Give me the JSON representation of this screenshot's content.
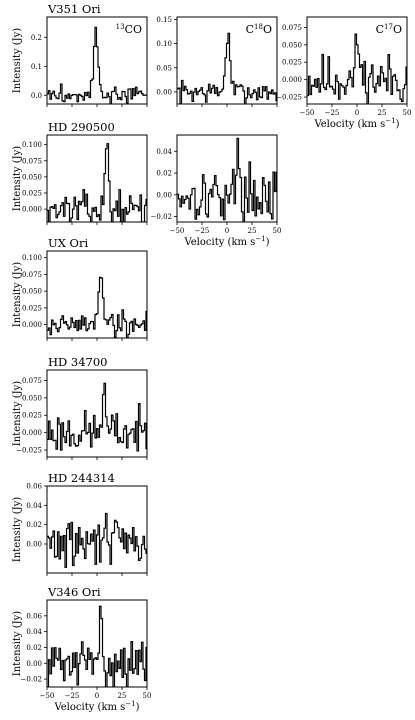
{
  "figure": {
    "y_axis_label": "Intensity (Jy)",
    "x_axis_label": "Velocity (km s⁻¹)",
    "x_range": [
      -50,
      50
    ],
    "x_ticks": [
      -50,
      -25,
      0,
      25,
      50
    ]
  },
  "chart_data": [
    {
      "id": "v351-13co",
      "type": "line",
      "row": 0,
      "col": 0,
      "title": "V351 Ori",
      "molecule": "13CO",
      "ylim": [
        -0.03,
        0.27
      ],
      "yticks": [
        0.0,
        0.1,
        0.2
      ],
      "ytick_labels": [
        "0.0",
        "0.1",
        "0.2"
      ],
      "show_ylabel": true,
      "show_xlabel": false,
      "show_xticklabels": false,
      "peak": {
        "center": -2,
        "amplitude": 0.22,
        "width": 5
      },
      "noise": 0.015,
      "seed": 3
    },
    {
      "id": "v351-c18o",
      "type": "line",
      "row": 0,
      "col": 1,
      "title": "",
      "molecule": "C18O",
      "ylim": [
        -0.025,
        0.155
      ],
      "yticks": [
        0.0,
        0.05,
        0.1,
        0.15
      ],
      "ytick_labels": [
        "0.00",
        "0.05",
        "0.10",
        "0.15"
      ],
      "show_ylabel": false,
      "show_xlabel": false,
      "show_xticklabels": false,
      "peak": {
        "center": 0,
        "amplitude": 0.12,
        "width": 5
      },
      "noise": 0.012,
      "seed": 7
    },
    {
      "id": "v351-c17o",
      "type": "line",
      "row": 0,
      "col": 2,
      "title": "",
      "molecule": "C17O",
      "ylim": [
        -0.035,
        0.09
      ],
      "yticks": [
        -0.025,
        0.0,
        0.025,
        0.05,
        0.075
      ],
      "ytick_labels": [
        "−0.025",
        "0.000",
        "0.025",
        "0.050",
        "0.075"
      ],
      "show_ylabel": false,
      "show_xlabel": true,
      "show_xticklabels": true,
      "peak": {
        "center": 0,
        "amplitude": 0.06,
        "width": 4
      },
      "noise": 0.018,
      "seed": 11
    },
    {
      "id": "hd290500-13co",
      "type": "line",
      "row": 1,
      "col": 0,
      "title": "HD 290500",
      "molecule": "",
      "ylim": [
        -0.02,
        0.115
      ],
      "yticks": [
        0.0,
        0.025,
        0.05,
        0.075,
        0.1
      ],
      "ytick_labels": [
        "0.000",
        "0.025",
        "0.050",
        "0.075",
        "0.100"
      ],
      "show_ylabel": true,
      "show_xlabel": false,
      "show_xticklabels": false,
      "peak": {
        "center": 9,
        "amplitude": 0.1,
        "width": 4
      },
      "noise": 0.012,
      "seed": 13
    },
    {
      "id": "hd290500-c18o",
      "type": "line",
      "row": 1,
      "col": 1,
      "title": "",
      "molecule": "",
      "ylim": [
        -0.025,
        0.055
      ],
      "yticks": [
        -0.02,
        0.0,
        0.02,
        0.04
      ],
      "ytick_labels": [
        "−0.02",
        "0.00",
        "0.02",
        "0.04"
      ],
      "show_ylabel": false,
      "show_xlabel": true,
      "show_xticklabels": true,
      "peak": {
        "center": 10,
        "amplitude": 0.03,
        "width": 5
      },
      "noise": 0.012,
      "seed": 17
    },
    {
      "id": "uxori-13co",
      "type": "line",
      "row": 2,
      "col": 0,
      "title": "UX Ori",
      "molecule": "",
      "ylim": [
        -0.02,
        0.11
      ],
      "yticks": [
        0.0,
        0.025,
        0.05,
        0.075,
        0.1
      ],
      "ytick_labels": [
        "0.000",
        "0.025",
        "0.050",
        "0.075",
        "0.100"
      ],
      "show_ylabel": true,
      "show_xlabel": false,
      "show_xticklabels": false,
      "peak": {
        "center": 3,
        "amplitude": 0.085,
        "width": 5
      },
      "noise": 0.01,
      "seed": 19
    },
    {
      "id": "hd34700-13co",
      "type": "line",
      "row": 3,
      "col": 0,
      "title": "HD 34700",
      "molecule": "",
      "ylim": [
        -0.035,
        0.09
      ],
      "yticks": [
        -0.025,
        0.0,
        0.025,
        0.05,
        0.075
      ],
      "ytick_labels": [
        "−0.025",
        "0.000",
        "0.025",
        "0.050",
        "0.075"
      ],
      "show_ylabel": true,
      "show_xlabel": false,
      "show_xticklabels": false,
      "peak": {
        "center": 6,
        "amplitude": 0.06,
        "width": 4
      },
      "noise": 0.015,
      "seed": 23
    },
    {
      "id": "hd244314-13co",
      "type": "line",
      "row": 4,
      "col": 0,
      "title": "HD 244314",
      "molecule": "",
      "ylim": [
        -0.03,
        0.06
      ],
      "yticks": [
        0.0,
        0.02,
        0.04,
        0.06
      ],
      "ytick_labels": [
        "0.00",
        "0.02",
        "0.04",
        "0.06"
      ],
      "show_ylabel": true,
      "show_xlabel": false,
      "show_xticklabels": false,
      "peak": {
        "center": 8,
        "amplitude": 0.05,
        "width": 3
      },
      "noise": 0.012,
      "seed": 29
    },
    {
      "id": "v346-13co",
      "type": "line",
      "row": 5,
      "col": 0,
      "title": "V346 Ori",
      "molecule": "",
      "ylim": [
        -0.03,
        0.08
      ],
      "yticks": [
        -0.02,
        0.0,
        0.02,
        0.04,
        0.06
      ],
      "ytick_labels": [
        "−0.02",
        "0.00",
        "0.02",
        "0.04",
        "0.06"
      ],
      "show_ylabel": true,
      "show_xlabel": true,
      "show_xticklabels": true,
      "peak": {
        "center": 3,
        "amplitude": 0.06,
        "width": 3
      },
      "noise": 0.014,
      "seed": 31
    }
  ]
}
